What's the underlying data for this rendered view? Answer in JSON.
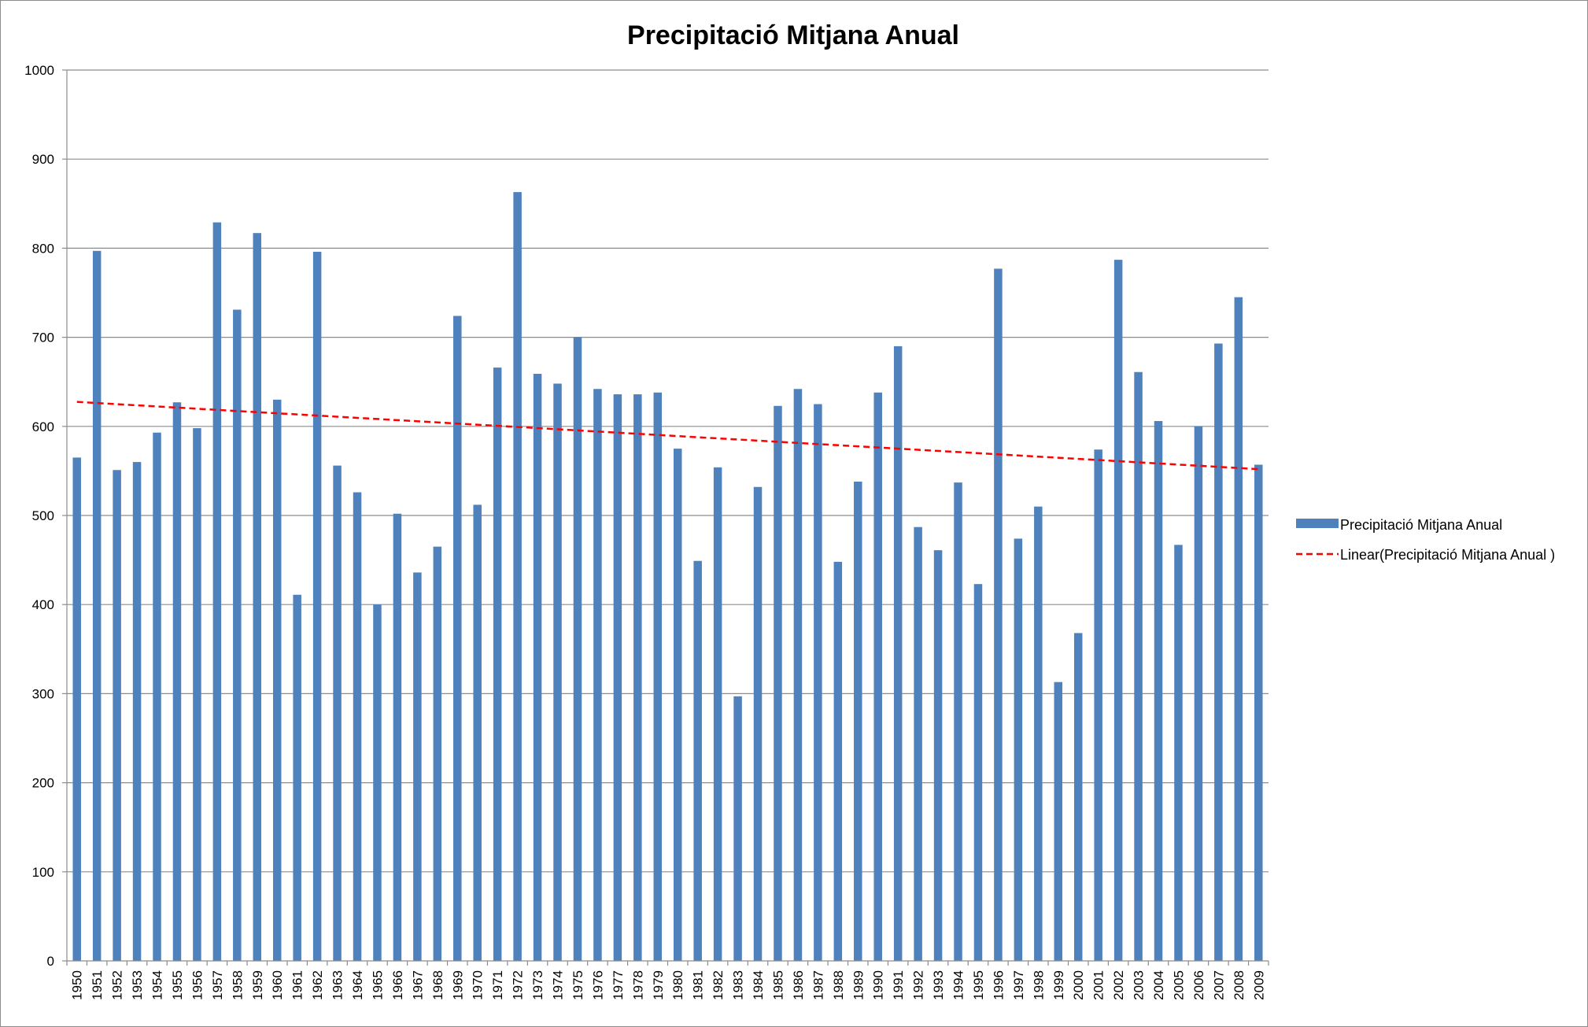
{
  "chart_data": {
    "type": "bar",
    "title": "Precipitació Mitjana Anual",
    "xlabel": "",
    "ylabel": "",
    "ylim": [
      0,
      1000
    ],
    "yticks": [
      0,
      100,
      200,
      300,
      400,
      500,
      600,
      700,
      800,
      900,
      1000
    ],
    "grid": "horizontal",
    "legend_position": "right",
    "categories": [
      "1950",
      "1951",
      "1952",
      "1953",
      "1954",
      "1955",
      "1956",
      "1957",
      "1958",
      "1959",
      "1960",
      "1961",
      "1962",
      "1963",
      "1964",
      "1965",
      "1966",
      "1967",
      "1968",
      "1969",
      "1970",
      "1971",
      "1972",
      "1973",
      "1974",
      "1975",
      "1976",
      "1977",
      "1978",
      "1979",
      "1980",
      "1981",
      "1982",
      "1983",
      "1984",
      "1985",
      "1986",
      "1987",
      "1988",
      "1989",
      "1990",
      "1991",
      "1992",
      "1993",
      "1994",
      "1995",
      "1996",
      "1997",
      "1998",
      "1999",
      "2000",
      "2001",
      "2002",
      "2003",
      "2004",
      "2005",
      "2006",
      "2007",
      "2008",
      "2009"
    ],
    "series": [
      {
        "name": "Precipitació Mitjana Anual",
        "color": "#4f81bd",
        "values": [
          565,
          797,
          551,
          560,
          593,
          627,
          598,
          829,
          731,
          817,
          630,
          411,
          796,
          556,
          526,
          400,
          502,
          436,
          465,
          724,
          512,
          666,
          863,
          659,
          648,
          700,
          642,
          636,
          636,
          638,
          575,
          449,
          554,
          297,
          532,
          623,
          642,
          625,
          448,
          538,
          638,
          690,
          487,
          461,
          537,
          423,
          777,
          474,
          510,
          313,
          368,
          574,
          787,
          661,
          606,
          467,
          600,
          693,
          745,
          557
        ]
      }
    ],
    "trendline": {
      "name": "Linear(Precipitació Mitjana Anual )",
      "type": "linear",
      "color": "#ff0000",
      "start": 627.5,
      "end": 552.0
    }
  }
}
